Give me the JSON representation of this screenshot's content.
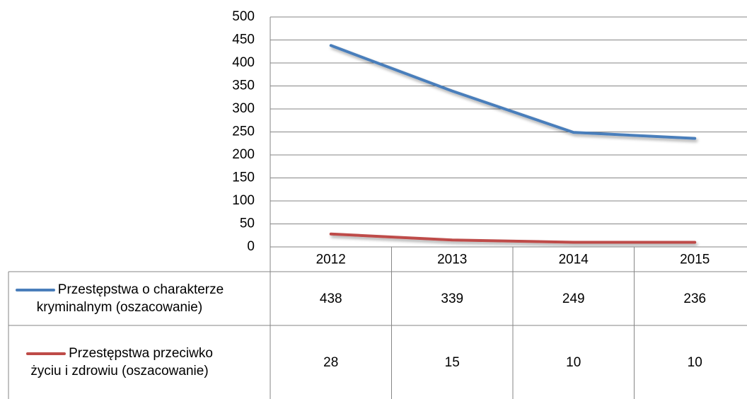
{
  "chart_data": {
    "type": "line",
    "categories": [
      "2012",
      "2013",
      "2014",
      "2015"
    ],
    "series": [
      {
        "name": "Przestępstwa o charakterze kryminalnym (oszacowanie)",
        "color": "#4a7ebb",
        "values": [
          438,
          339,
          249,
          236
        ]
      },
      {
        "name": "Przestępstwa przeciwko życiu i zdrowiu (oszacowanie)",
        "color": "#be4b48",
        "values": [
          28,
          15,
          10,
          10
        ]
      }
    ],
    "ylim": [
      0,
      500
    ],
    "yticks": [
      0,
      50,
      100,
      150,
      200,
      250,
      300,
      350,
      400,
      450,
      500
    ],
    "grid": true,
    "data_table": true
  }
}
